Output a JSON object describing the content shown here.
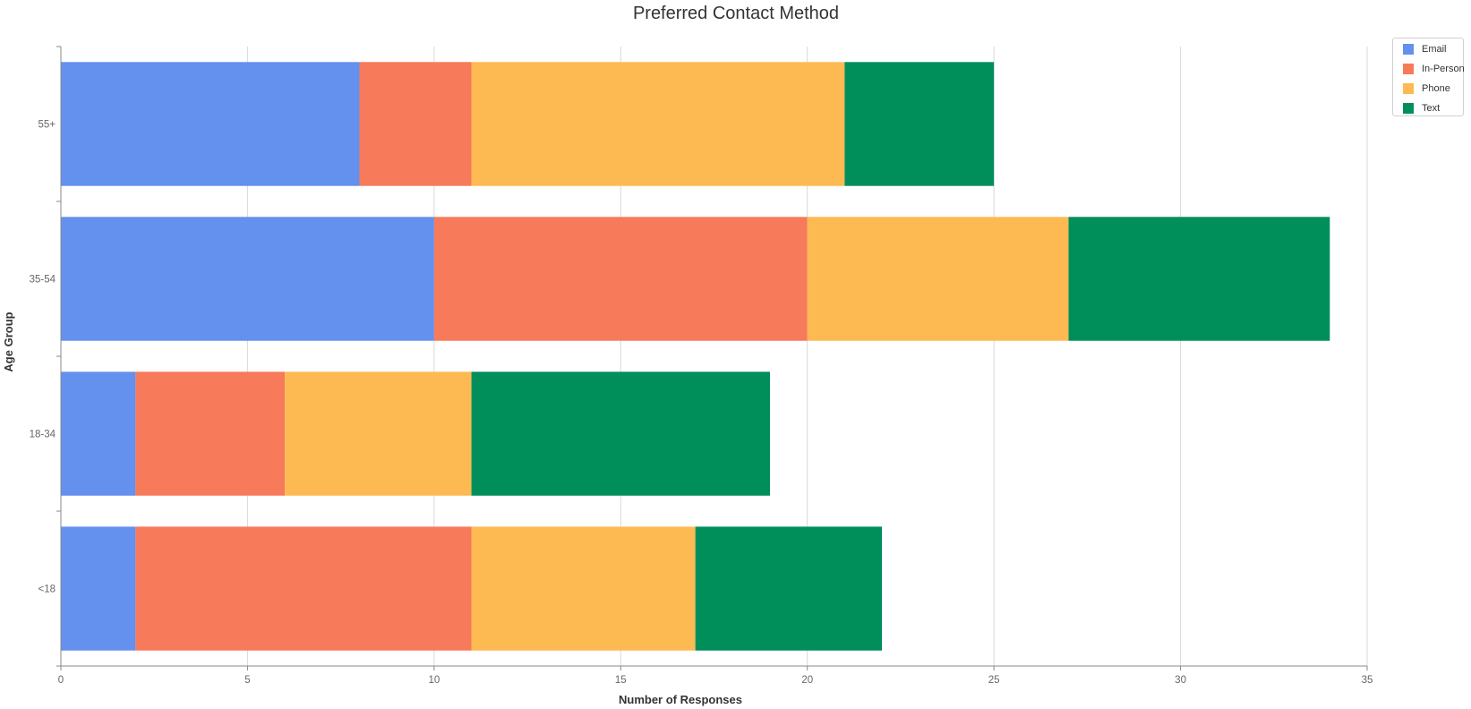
{
  "chart_data": {
    "type": "bar",
    "orientation": "horizontal",
    "stacked": true,
    "title": "Preferred Contact Method",
    "xlabel": "Number of Responses",
    "ylabel": "Age Group",
    "xlim": [
      0,
      35
    ],
    "xticks": [
      "0",
      "5",
      "10",
      "15",
      "20",
      "25",
      "30",
      "35"
    ],
    "grid": "vertical",
    "legend_position": "top-right",
    "categories": [
      "<18",
      "18-34",
      "35-54",
      "55+"
    ],
    "series": [
      {
        "name": "Email",
        "color": "#6490EE",
        "values": [
          2,
          2,
          10,
          8
        ]
      },
      {
        "name": "In-Person",
        "color": "#F77A5B",
        "values": [
          9,
          4,
          10,
          3
        ]
      },
      {
        "name": "Phone",
        "color": "#FDBA52",
        "values": [
          6,
          5,
          7,
          10
        ]
      },
      {
        "name": "Text",
        "color": "#008F5B",
        "values": [
          5,
          8,
          7,
          4
        ]
      }
    ]
  }
}
